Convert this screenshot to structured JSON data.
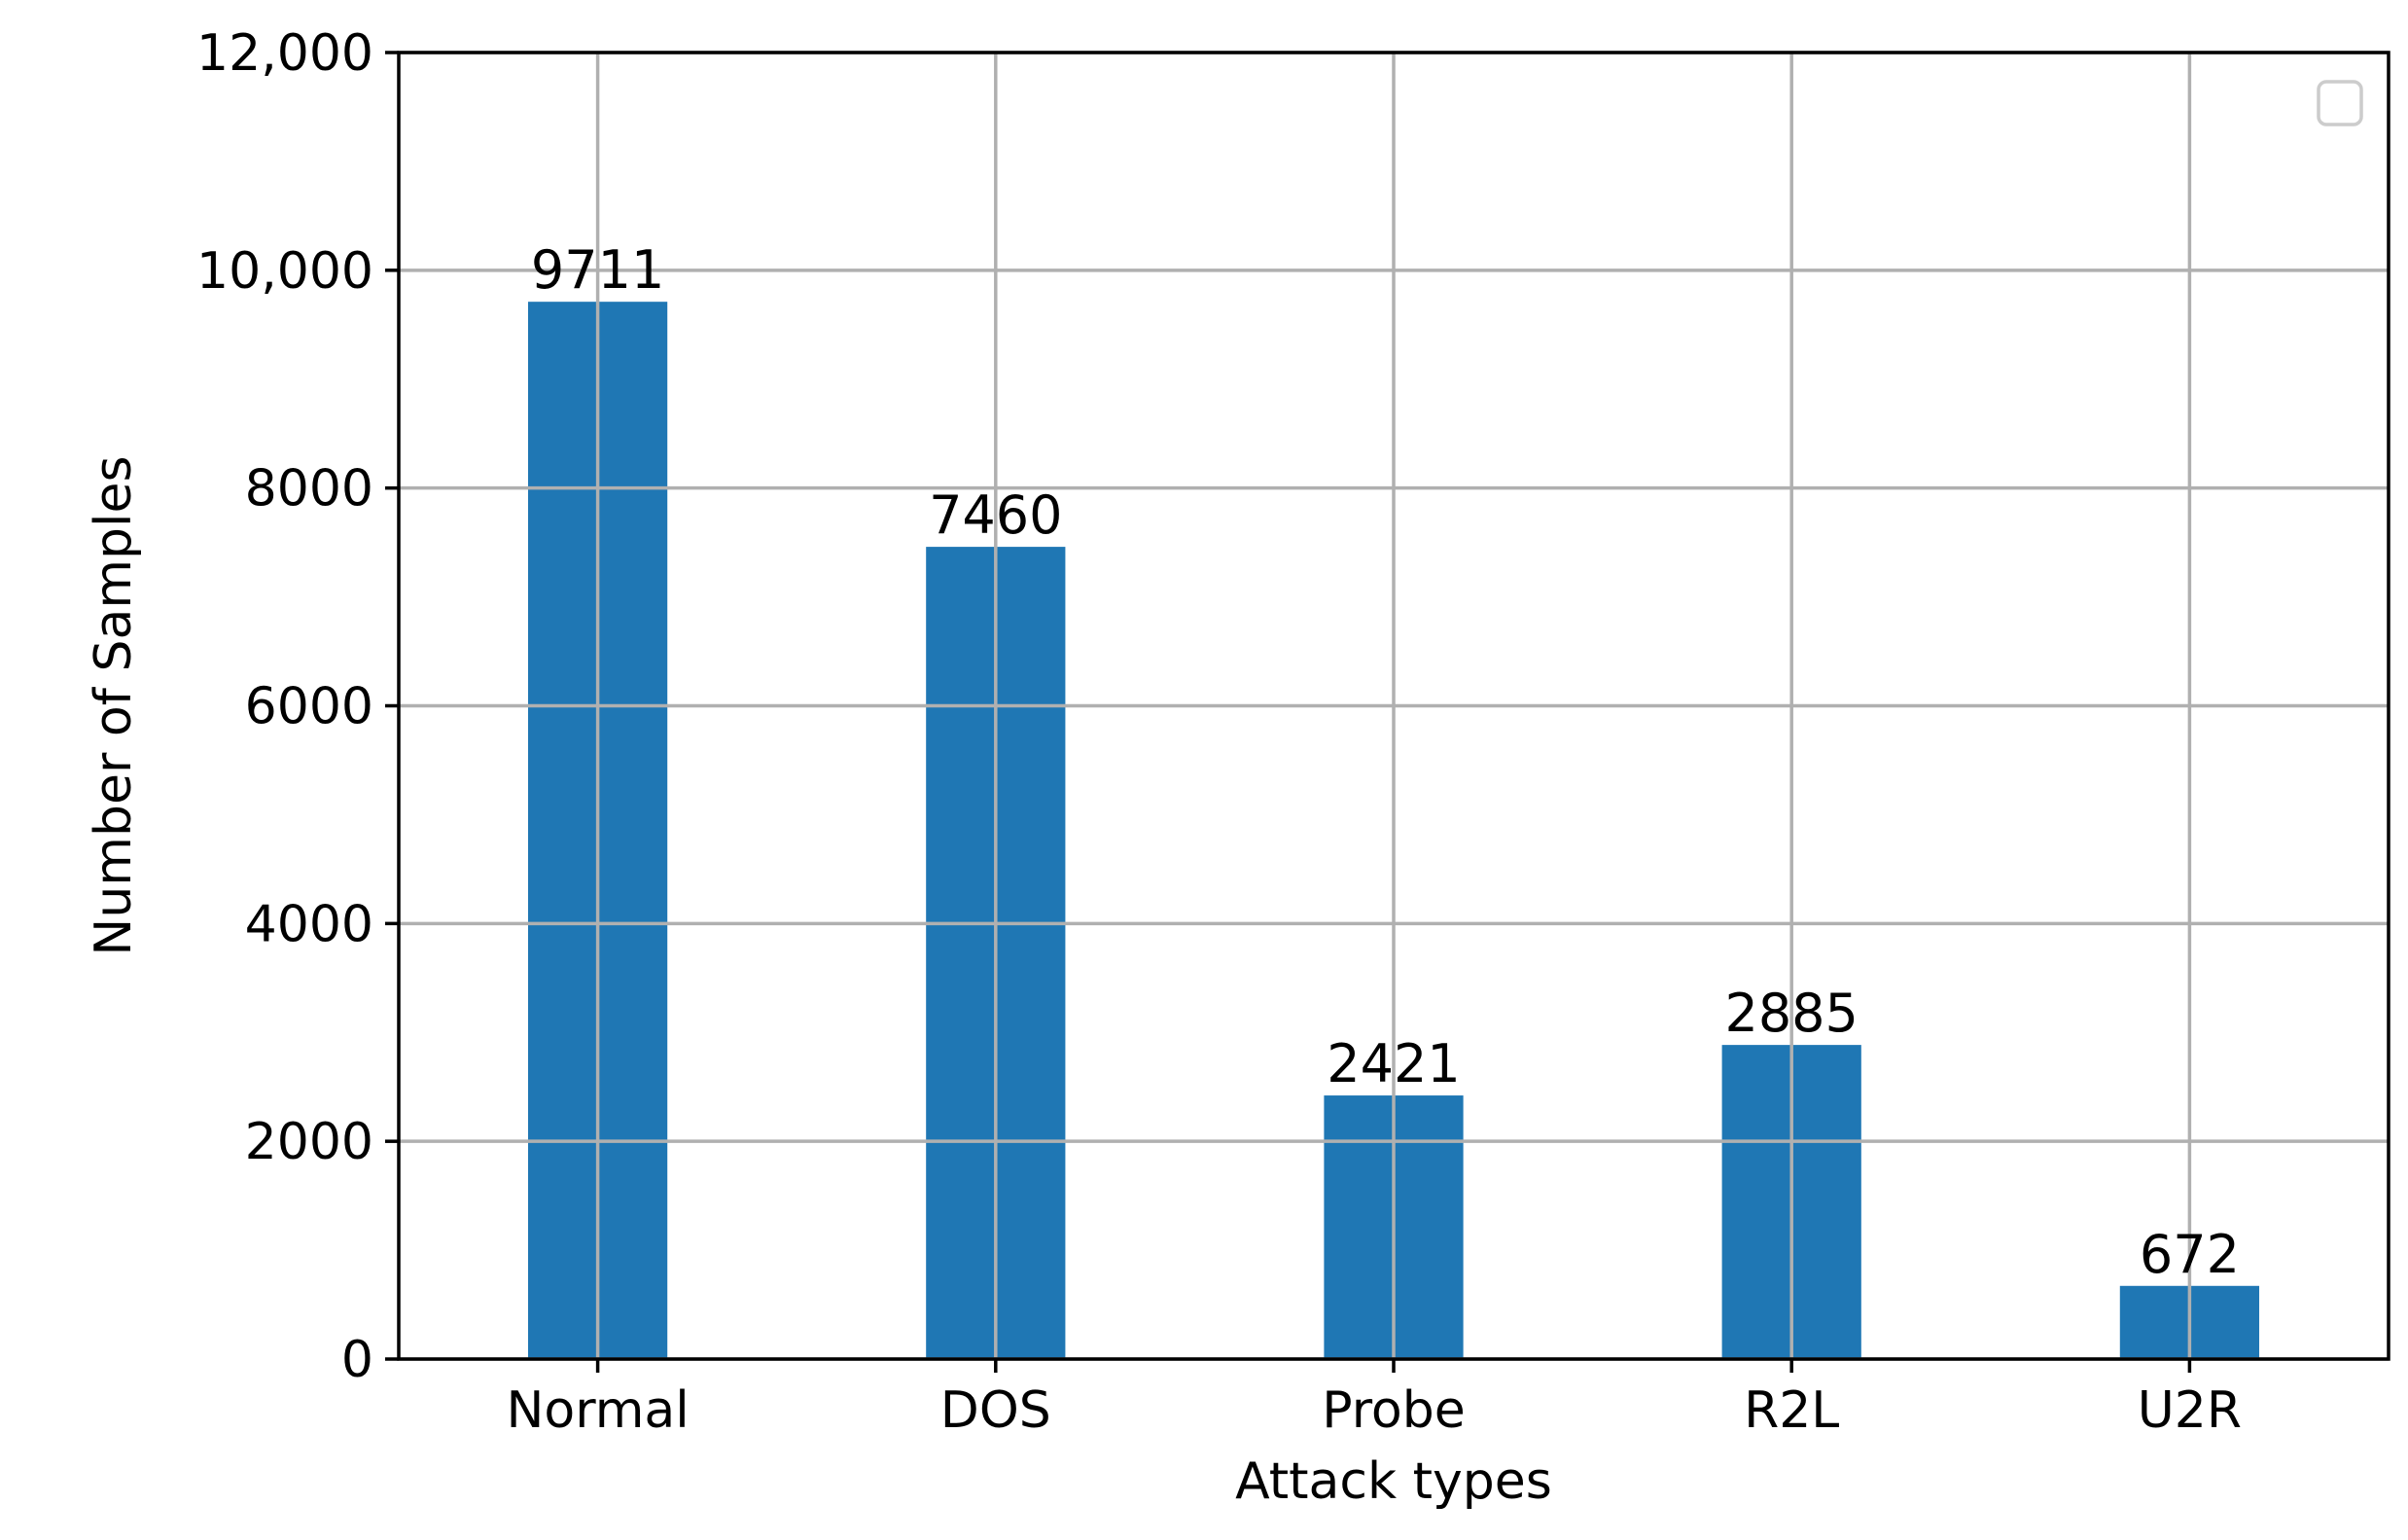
{
  "chart_data": {
    "type": "bar",
    "categories": [
      "Normal",
      "DOS",
      "Probe",
      "R2L",
      "U2R"
    ],
    "values": [
      9711,
      7460,
      2421,
      2885,
      672
    ],
    "data_labels": [
      "9711",
      "7460",
      "2421",
      "2885",
      "672"
    ],
    "title": "",
    "xlabel": "Attack types",
    "ylabel": "Number of Samples",
    "ylim": [
      0,
      12000
    ],
    "yticks": [
      0,
      2000,
      4000,
      6000,
      8000,
      10000,
      12000
    ],
    "ytick_labels": [
      "0",
      "2000",
      "4000",
      "6000",
      "8000",
      "10,000",
      "12,000"
    ],
    "grid": true,
    "legend": "top-right",
    "bar_color": "#1f77b4"
  }
}
